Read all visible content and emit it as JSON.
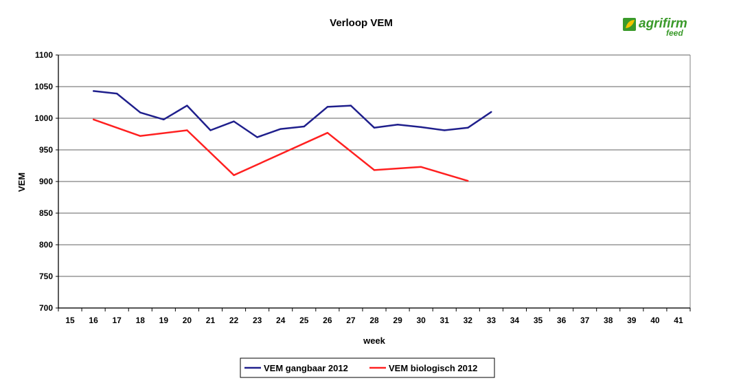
{
  "logo": {
    "brand": "agrifirm",
    "sub": "feed",
    "colors": {
      "green": "#3a9a2a",
      "yellow": "#f2c300"
    }
  },
  "chart_data": {
    "type": "line",
    "title": "Verloop VEM",
    "xlabel": "week",
    "ylabel": "VEM",
    "xlim": [
      15,
      41
    ],
    "ylim": [
      700,
      1100
    ],
    "x_ticks": [
      "15",
      "16",
      "17",
      "18",
      "19",
      "20",
      "21",
      "22",
      "23",
      "24",
      "25",
      "26",
      "27",
      "28",
      "29",
      "30",
      "31",
      "32",
      "33",
      "34",
      "35",
      "36",
      "37",
      "38",
      "39",
      "40",
      "41"
    ],
    "y_ticks": [
      "700",
      "750",
      "800",
      "850",
      "900",
      "950",
      "1000",
      "1050",
      "1100"
    ],
    "grid": true,
    "legend_position": "bottom",
    "series": [
      {
        "name": "VEM gangbaar 2012",
        "color": "#1f1f8c",
        "x": [
          16,
          17,
          18,
          19,
          20,
          21,
          22,
          23,
          24,
          25,
          26,
          27,
          28,
          29,
          30,
          31,
          32,
          33
        ],
        "y": [
          1043,
          1039,
          1009,
          998,
          1020,
          981,
          995,
          970,
          983,
          987,
          1018,
          1020,
          985,
          990,
          986,
          981,
          985,
          1010
        ]
      },
      {
        "name": "VEM biologisch 2012",
        "color": "#ff2020",
        "x": [
          16,
          18,
          20,
          22,
          26,
          28,
          30,
          32
        ],
        "y": [
          998,
          972,
          981,
          910,
          977,
          918,
          923,
          901
        ]
      }
    ]
  }
}
